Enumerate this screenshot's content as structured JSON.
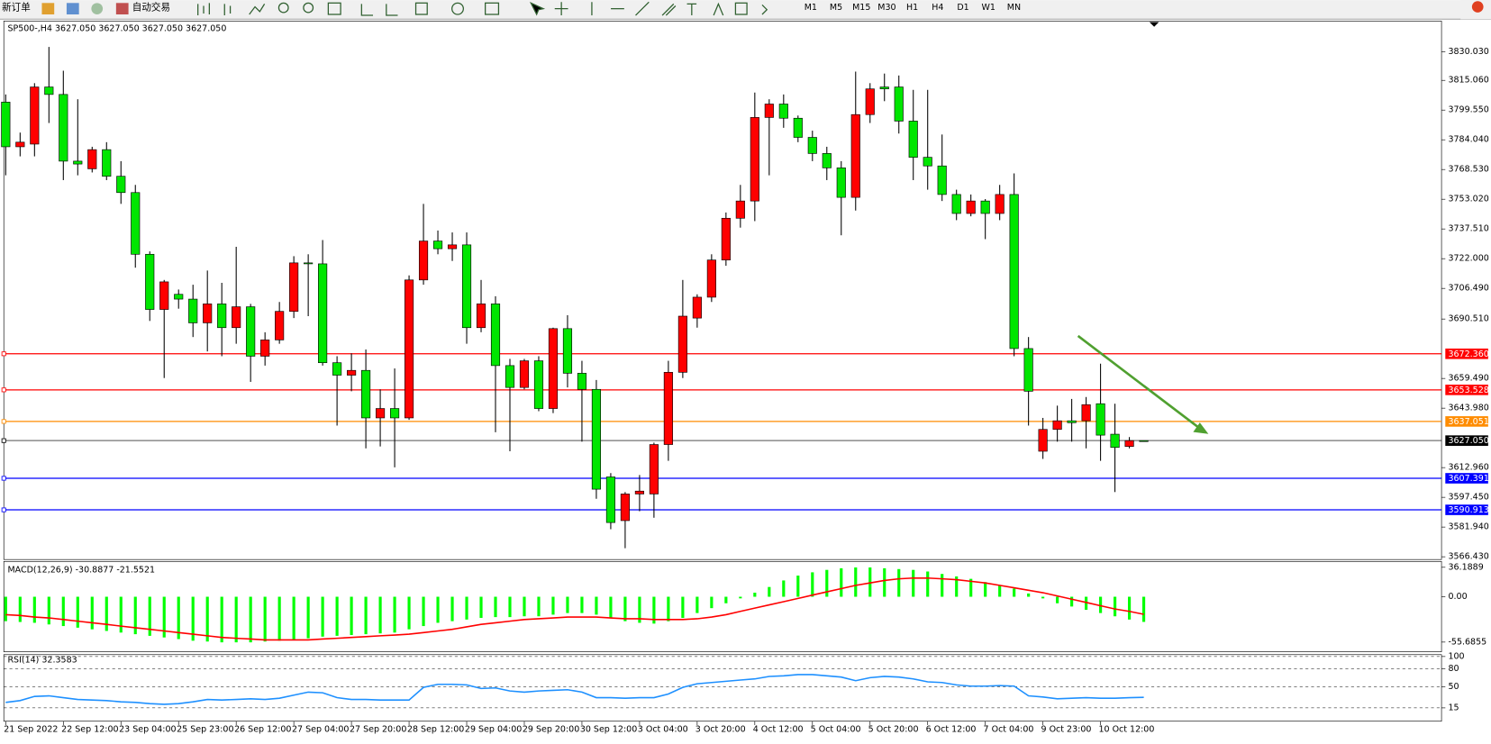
{
  "toolbar": {
    "new_order": "新订单",
    "auto_trading": "自动交易",
    "timeframes": [
      "M1",
      "M5",
      "M15",
      "M30",
      "H1",
      "H4",
      "D1",
      "W1",
      "MN"
    ]
  },
  "chart_data": [
    {
      "type": "candlestick",
      "title": "SP500-,H4  3627.050 3627.050 3627.050 3627.050",
      "up_color": "#ff0000",
      "down_color": "#00e600",
      "categories": [
        "21 Sep 2022",
        null,
        null,
        null,
        "22 Sep 12:00",
        null,
        null,
        null,
        "23 Sep 04:00",
        null,
        null,
        null,
        "25 Sep 23:00",
        null,
        null,
        null,
        "26 Sep 12:00",
        null,
        null,
        null,
        "27 Sep 04:00",
        null,
        null,
        null,
        "27 Sep 20:00",
        null,
        null,
        null,
        "28 Sep 12:00",
        null,
        null,
        null,
        "29 Sep 04:00",
        null,
        null,
        null,
        "29 Sep 20:00",
        null,
        null,
        null,
        "30 Sep 12:00",
        null,
        null,
        null,
        "3 Oct 04:00",
        null,
        null,
        null,
        "3 Oct 20:00",
        null,
        null,
        null,
        "4 Oct 12:00",
        null,
        null,
        null,
        "5 Oct 04:00",
        null,
        null,
        null,
        "5 Oct 20:00",
        null,
        null,
        null,
        "6 Oct 12:00",
        null,
        null,
        null,
        "7 Oct 04:00",
        null,
        null,
        null,
        "9 Oct 23:00",
        null,
        null,
        null,
        "10 Oct 12:00",
        null,
        null,
        null
      ],
      "open": [
        3803.7,
        3780.4,
        3781.8,
        3811.6,
        3807.7,
        3772.9,
        3768.9,
        3778.9,
        3765.0,
        3756.5,
        3724.3,
        3695.5,
        3703.4,
        3700.9,
        3688.5,
        3698.4,
        3686.0,
        3696.9,
        3671.1,
        3679.6,
        3694.5,
        3719.8,
        3719.3,
        3667.7,
        3661.2,
        3663.7,
        3638.9,
        3643.8,
        3638.9,
        3710.9,
        3731.2,
        3727.2,
        3729.2,
        3686.0,
        3698.4,
        3666.2,
        3654.8,
        3668.7,
        3643.8,
        3685.5,
        3662.2,
        3653.8,
        3608.1,
        3585.3,
        3599.2,
        3599.2,
        3625.0,
        3662.7,
        3691.0,
        3701.9,
        3721.3,
        3743.1,
        3752.1,
        3795.7,
        3802.7,
        3795.3,
        3785.3,
        3776.9,
        3769.4,
        3754.0,
        3797.2,
        3811.6,
        3811.6,
        3793.8,
        3774.9,
        3770.4,
        3755.5,
        3745.6,
        3752.1,
        3745.6,
        3755.5,
        3675.1,
        3621.5,
        3632.9,
        3637.4,
        3637.4,
        3646.3,
        3630.4,
        3624.0,
        3627.05
      ],
      "high": [
        3807.7,
        3787.8,
        3813.6,
        3832.5,
        3820.1,
        3805.2,
        3780.4,
        3782.8,
        3772.9,
        3760.5,
        3725.8,
        3710.9,
        3705.9,
        3708.4,
        3715.8,
        3709.4,
        3728.2,
        3698.4,
        3683.6,
        3699.4,
        3723.3,
        3724.3,
        3731.7,
        3671.1,
        3672.6,
        3674.6,
        3653.8,
        3664.7,
        3713.3,
        3750.6,
        3736.7,
        3735.7,
        3735.7,
        3710.9,
        3702.4,
        3669.7,
        3669.7,
        3671.1,
        3686.0,
        3692.5,
        3668.7,
        3658.7,
        3610.1,
        3600.2,
        3609.1,
        3626.0,
        3668.7,
        3710.9,
        3703.4,
        3724.3,
        3746.1,
        3760.5,
        3808.7,
        3805.2,
        3807.7,
        3796.7,
        3788.8,
        3780.4,
        3772.9,
        3819.6,
        3813.6,
        3818.6,
        3817.6,
        3810.1,
        3810.1,
        3786.8,
        3758.0,
        3755.5,
        3753.1,
        3760.5,
        3766.5,
        3681.1,
        3638.9,
        3645.3,
        3648.8,
        3649.8,
        3667.2,
        3646.3,
        3628.9,
        3627.05
      ],
      "low": [
        3765.5,
        3775.4,
        3775.4,
        3792.8,
        3763.0,
        3765.5,
        3767.0,
        3763.0,
        3750.6,
        3717.3,
        3689.5,
        3659.7,
        3695.9,
        3681.1,
        3673.6,
        3671.1,
        3677.6,
        3657.7,
        3666.2,
        3677.6,
        3691.0,
        3692.0,
        3666.2,
        3634.9,
        3652.8,
        3623.0,
        3624.0,
        3613.1,
        3637.9,
        3708.4,
        3724.3,
        3720.8,
        3677.6,
        3683.6,
        3631.4,
        3621.5,
        3653.8,
        3642.4,
        3641.4,
        3654.8,
        3626.5,
        3596.7,
        3580.8,
        3570.9,
        3590.2,
        3586.8,
        3616.5,
        3659.7,
        3686.0,
        3699.4,
        3718.3,
        3738.2,
        3741.6,
        3765.5,
        3790.3,
        3782.8,
        3772.9,
        3763.0,
        3734.2,
        3747.1,
        3792.8,
        3804.2,
        3787.3,
        3763.0,
        3758.0,
        3752.1,
        3742.1,
        3744.1,
        3732.2,
        3742.1,
        3671.1,
        3634.9,
        3617.5,
        3626.5,
        3626.5,
        3623.0,
        3616.5,
        3600.2,
        3623.0,
        3627.05
      ],
      "close": [
        3780.4,
        3782.8,
        3811.6,
        3807.7,
        3772.9,
        3771.4,
        3778.9,
        3765.0,
        3756.5,
        3724.3,
        3695.5,
        3709.9,
        3700.9,
        3688.5,
        3698.4,
        3686.0,
        3696.9,
        3671.1,
        3679.6,
        3694.5,
        3719.8,
        3719.3,
        3667.7,
        3661.2,
        3663.7,
        3638.9,
        3643.8,
        3638.9,
        3710.9,
        3731.2,
        3727.2,
        3729.2,
        3686.0,
        3698.4,
        3666.2,
        3654.8,
        3668.7,
        3643.8,
        3685.5,
        3662.2,
        3653.8,
        3601.7,
        3584.3,
        3599.2,
        3600.7,
        3625.0,
        3662.7,
        3692.0,
        3701.9,
        3721.3,
        3743.1,
        3752.1,
        3795.7,
        3802.7,
        3795.3,
        3785.3,
        3776.9,
        3769.4,
        3754.0,
        3797.2,
        3810.6,
        3810.6,
        3793.8,
        3774.9,
        3770.4,
        3755.5,
        3745.6,
        3752.1,
        3745.6,
        3755.5,
        3675.1,
        3652.8,
        3632.9,
        3637.4,
        3636.4,
        3645.8,
        3629.9,
        3623.5,
        3627.05,
        3627.05
      ],
      "ylim": [
        3565,
        3846
      ],
      "yticks": [
        {
          "value": 3830.03,
          "label": "3830.030"
        },
        {
          "value": 3815.06,
          "label": "3815.060"
        },
        {
          "value": 3799.55,
          "label": "3799.550"
        },
        {
          "value": 3784.04,
          "label": "3784.040"
        },
        {
          "value": 3768.53,
          "label": "3768.530"
        },
        {
          "value": 3753.02,
          "label": "3753.020"
        },
        {
          "value": 3737.51,
          "label": "3737.510"
        },
        {
          "value": 3722.0,
          "label": "3722.000"
        },
        {
          "value": 3706.49,
          "label": "3706.490"
        },
        {
          "value": 3690.51,
          "label": "3690.510"
        },
        {
          "value": 3659.49,
          "label": "3659.490"
        },
        {
          "value": 3643.98,
          "label": "3643.980"
        },
        {
          "value": 3612.96,
          "label": "3612.960"
        },
        {
          "value": 3597.45,
          "label": "3597.450"
        },
        {
          "value": 3581.94,
          "label": "3581.940"
        },
        {
          "value": 3566.43,
          "label": "3566.430"
        }
      ],
      "hlines": [
        {
          "value": 3672.36,
          "label": "3672.360",
          "color": "#ff0000"
        },
        {
          "value": 3653.528,
          "label": "3653.528",
          "color": "#ff0000"
        },
        {
          "value": 3637.051,
          "label": "3637.051",
          "color": "#ff8c00"
        },
        {
          "value": 3627.05,
          "label": "3627.050",
          "color": "#000000"
        },
        {
          "value": 3607.391,
          "label": "3607.391",
          "color": "#0000ff"
        },
        {
          "value": 3590.913,
          "label": "3590.913",
          "color": "#0000ff"
        }
      ]
    },
    {
      "type": "macd",
      "title": "MACD(12,26,9) -30.8877 -21.5521",
      "ylim": [
        -67.6,
        43.4
      ],
      "yticks": [
        36.1889,
        {
          "value": 0,
          "label": "0.00"
        },
        -55.6855
      ],
      "series": [
        {
          "style": "bar",
          "color": "#00ff00",
          "values": [
            -30,
            -31,
            -32,
            -34,
            -36,
            -38,
            -40,
            -42,
            -44,
            -46,
            -48,
            -50,
            -52,
            -54,
            -55,
            -56,
            -56,
            -56,
            -55,
            -54,
            -53,
            -51,
            -49,
            -48,
            -47,
            -46,
            -45,
            -44,
            -40,
            -36,
            -32,
            -30,
            -28,
            -26,
            -25,
            -25,
            -24,
            -24,
            -22,
            -20,
            -20,
            -22,
            -26,
            -30,
            -32,
            -33,
            -30,
            -26,
            -20,
            -14,
            -8,
            -2,
            5,
            12,
            20,
            26,
            30,
            33,
            35,
            36,
            36,
            35,
            34,
            33,
            31,
            28,
            25,
            22,
            18,
            14,
            10,
            4,
            -2,
            -8,
            -12,
            -16,
            -20,
            -24,
            -28,
            -30.8877
          ]
        },
        {
          "style": "line",
          "color": "#ff0000",
          "values": [
            -22,
            -23,
            -25,
            -26,
            -28,
            -30,
            -32,
            -34,
            -36,
            -38,
            -40,
            -42,
            -44,
            -46,
            -48,
            -50,
            -51,
            -52,
            -53,
            -53,
            -53,
            -53,
            -52,
            -51,
            -50,
            -49,
            -48,
            -47,
            -46,
            -44,
            -42,
            -40,
            -37,
            -34,
            -32,
            -30,
            -28,
            -27,
            -26,
            -25,
            -25,
            -25,
            -26,
            -27,
            -27,
            -28,
            -28,
            -28,
            -27,
            -25,
            -22,
            -18,
            -14,
            -10,
            -6,
            -2,
            2,
            6,
            10,
            14,
            17,
            20,
            22,
            23,
            23,
            22,
            21,
            19,
            17,
            14,
            11,
            8,
            5,
            1,
            -3,
            -7,
            -11,
            -15,
            -18,
            -21.5521
          ]
        }
      ]
    },
    {
      "type": "line",
      "title": "RSI(14) 32.3583",
      "ylim": [
        -7.1,
        103.1
      ],
      "yticks": [
        100,
        80,
        50,
        15
      ],
      "grid": "dashed",
      "series": [
        {
          "style": "line",
          "color": "#1e90ff",
          "values": [
            24,
            27,
            34,
            35,
            32,
            29,
            28,
            27,
            25,
            24,
            22,
            21,
            22,
            25,
            29,
            28,
            29,
            30,
            29,
            31,
            36,
            41,
            40,
            32,
            29,
            29,
            28,
            28,
            28,
            49,
            54,
            54,
            53,
            47,
            48,
            43,
            41,
            43,
            44,
            45,
            41,
            32,
            32,
            31,
            32,
            32,
            38,
            49,
            55,
            57,
            59,
            61,
            63,
            67,
            68,
            70,
            70,
            68,
            66,
            60,
            65,
            67,
            66,
            63,
            58,
            57,
            53,
            51,
            51,
            52,
            51,
            35,
            33,
            30,
            31,
            32,
            31,
            31,
            32,
            32.3583
          ]
        }
      ]
    }
  ]
}
